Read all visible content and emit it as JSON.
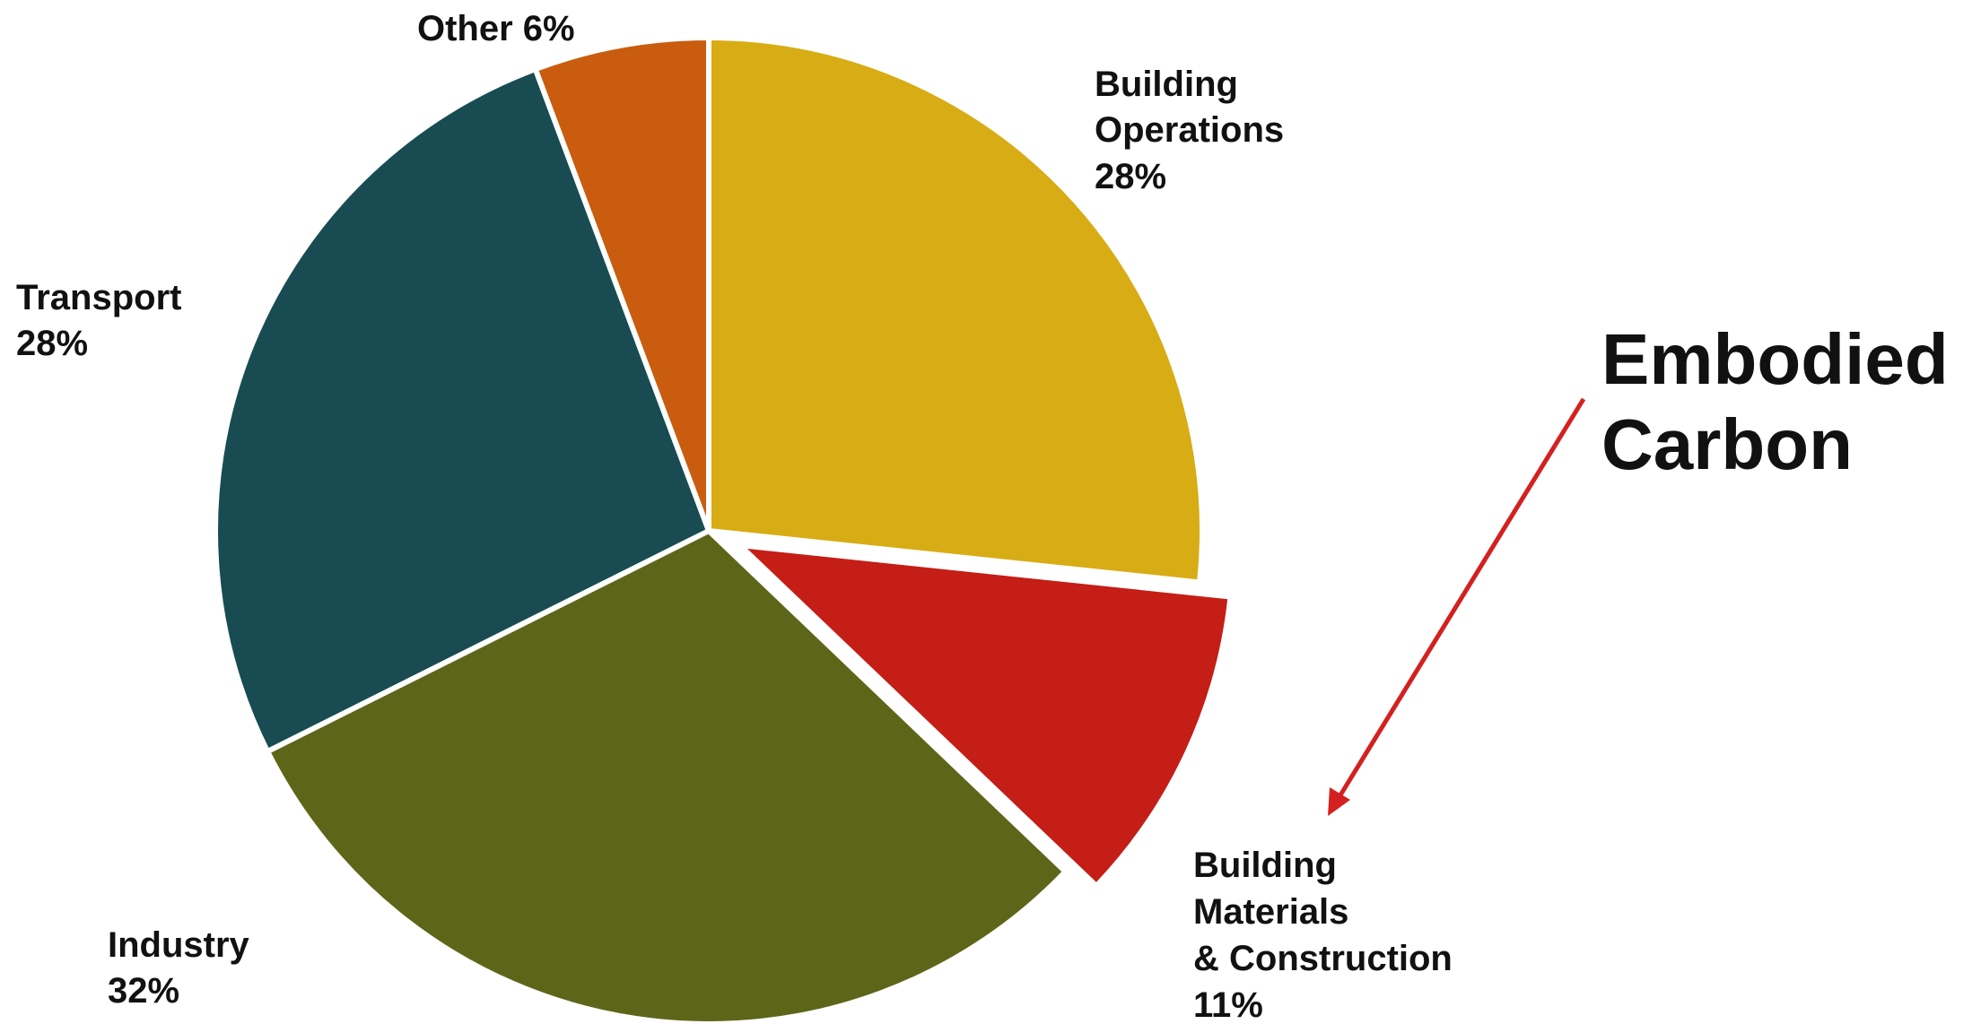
{
  "chart_data": {
    "type": "pie",
    "slices": [
      {
        "label": "Building Operations",
        "value": 28,
        "value_label": "28%",
        "color": "#D8AC14",
        "exploded": false
      },
      {
        "label": "Building Materials & Construction",
        "value": 11,
        "value_label": "11%",
        "color": "#C41E16",
        "exploded": true
      },
      {
        "label": "Industry",
        "value": 32,
        "value_label": "32%",
        "color": "#5D6618",
        "exploded": false
      },
      {
        "label": "Transport",
        "value": 28,
        "value_label": "28%",
        "color": "#184C52",
        "exploded": false
      },
      {
        "label": "Other",
        "value": 6,
        "value_label": "6%",
        "color": "#C95C0E",
        "exploded": false
      }
    ],
    "labels": {
      "other": "Other 6%",
      "building_operations": [
        "Building",
        "Operations",
        "28%"
      ],
      "transport": [
        "Transport",
        "28%"
      ],
      "industry": [
        "Industry",
        "32%"
      ],
      "building_materials": [
        "Building",
        "Materials",
        "& Construction",
        "11%"
      ]
    },
    "annotation": {
      "lines": [
        "Embodied",
        "Carbon"
      ],
      "arrow_color": "#D42020",
      "points_to": "Building Materials & Construction"
    }
  }
}
